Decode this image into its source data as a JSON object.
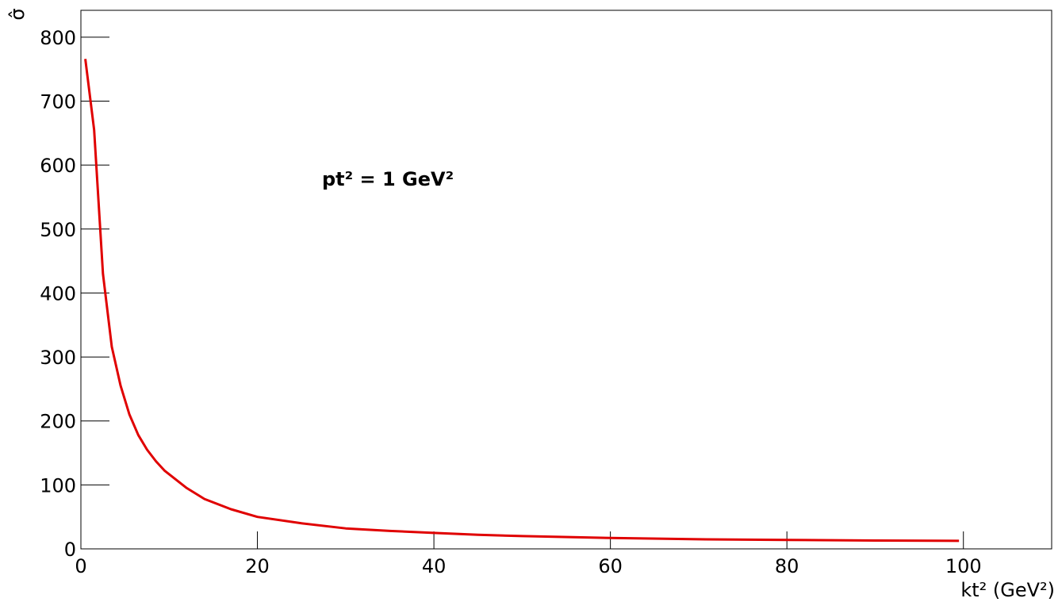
{
  "chart_data": {
    "type": "line",
    "y_label": "σ̂",
    "x_label": "kt² (GeV²)",
    "annotation": "pt² = 1 GeV²",
    "x": [
      0.5,
      1.5,
      2.5,
      3.5,
      4.5,
      5.5,
      6.5,
      7.5,
      8.5,
      9.5,
      12,
      14,
      17,
      20,
      25,
      30,
      35,
      40,
      45,
      50,
      60,
      70,
      80,
      90,
      99.5
    ],
    "series": [
      {
        "color": "#e00000",
        "values": [
          766,
          655,
          430,
          316,
          255,
          210,
          178,
          155,
          137,
          122,
          95,
          78,
          62,
          50,
          40,
          32,
          28,
          25,
          22,
          20,
          17,
          15,
          14,
          13,
          12.5
        ]
      }
    ],
    "xlim": [
      0,
      110
    ],
    "xticks": [
      0,
      20,
      40,
      60,
      80,
      100
    ],
    "ylim": [
      0,
      842
    ],
    "yticks": [
      0,
      100,
      200,
      300,
      400,
      500,
      600,
      700,
      800
    ],
    "grid": false
  }
}
